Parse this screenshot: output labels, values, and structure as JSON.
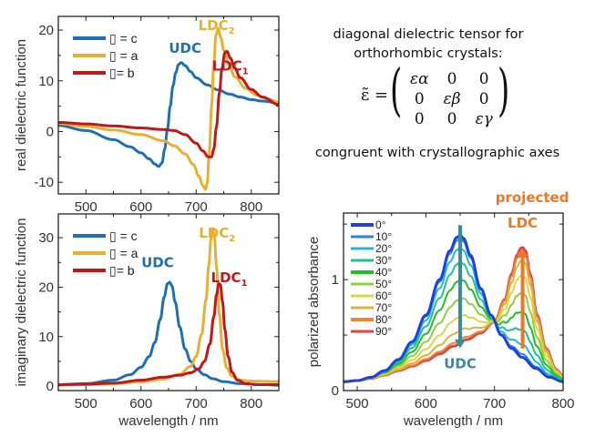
{
  "tensor_panel": {
    "line1": "diagonal dielectric tensor for",
    "line2": "orthorhombic crystals:",
    "lhs": "ε̃ =",
    "matrix": [
      [
        "ε_α",
        "0",
        "0"
      ],
      [
        "0",
        "ε_β",
        "0"
      ],
      [
        "0",
        "0",
        "ε_γ"
      ]
    ],
    "matrix_display": [
      [
        "εα",
        "0",
        "0"
      ],
      [
        "0",
        "εβ",
        "0"
      ],
      [
        "0",
        "0",
        "εγ"
      ]
    ],
    "footer": "congruent with crystallographic axes"
  },
  "colors": {
    "c_axis": "#1f6fb4",
    "a_axis": "#e8b030",
    "b_axis": "#c01818",
    "ldc_projected": "#e8782a",
    "udc_arrow": "#3a8a9a"
  },
  "chart_data": [
    {
      "id": "real",
      "type": "line",
      "title": "",
      "xlabel": "",
      "ylabel": "real dielectric function",
      "xlim": [
        450,
        850
      ],
      "ylim": [
        -12.3,
        22.7
      ],
      "xticks": [
        500,
        600,
        700,
        800
      ],
      "yticks": [
        -10,
        0,
        10,
        20
      ],
      "grid": false,
      "legend": {
        "placement": "top-left",
        "entries": [
          "▯ = c",
          "▯ = a",
          "▯= b"
        ]
      },
      "annotations": [
        {
          "text": "UDC",
          "color": "#1f6fb4",
          "x": 680,
          "y": 15.5
        },
        {
          "text": "LDC",
          "sub": "2",
          "color": "#e8b030",
          "x": 737,
          "y": 20
        },
        {
          "text": "LDC",
          "sub": "1",
          "color": "#c01818",
          "x": 762,
          "y": 12
        }
      ],
      "series": [
        {
          "name": "▯ = c",
          "color": "#1f6fb4",
          "x": [
            450,
            500,
            550,
            580,
            600,
            615,
            625,
            632,
            638,
            643,
            648,
            653,
            658,
            663,
            668,
            673,
            680,
            690,
            700,
            720,
            740,
            760,
            780,
            800,
            820,
            850
          ],
          "y": [
            1.2,
            0.2,
            -1.6,
            -3.0,
            -4.2,
            -5.4,
            -6.4,
            -6.9,
            -6.2,
            -3.5,
            0.5,
            5.0,
            9.0,
            11.6,
            13.2,
            13.6,
            13.0,
            11.8,
            10.6,
            9.2,
            8.2,
            7.4,
            6.8,
            6.3,
            6.0,
            5.6
          ]
        },
        {
          "name": "▯ = a",
          "color": "#e8b030",
          "x": [
            450,
            500,
            550,
            600,
            640,
            660,
            680,
            695,
            705,
            712,
            717,
            720,
            724,
            728,
            732,
            736,
            740,
            745,
            750,
            760,
            770,
            790,
            810,
            830,
            850
          ],
          "y": [
            1.6,
            1.0,
            0.3,
            -0.6,
            -1.8,
            -2.8,
            -4.4,
            -6.5,
            -8.8,
            -10.6,
            -11.4,
            -10.2,
            -4.0,
            5.0,
            13.5,
            19.0,
            20.3,
            18.5,
            16.0,
            13.0,
            10.8,
            8.5,
            7.2,
            6.4,
            5.8
          ]
        },
        {
          "name": "▯= b",
          "color": "#c01818",
          "x": [
            450,
            500,
            550,
            600,
            640,
            660,
            680,
            700,
            712,
            722,
            728,
            732,
            737,
            742,
            747,
            752,
            756,
            762,
            770,
            780,
            800,
            820,
            850
          ],
          "y": [
            1.8,
            1.5,
            1.1,
            0.7,
            0.4,
            0.2,
            -0.6,
            -2.3,
            -3.8,
            -5.0,
            -5.0,
            -3.5,
            1.0,
            7.5,
            12.5,
            15.5,
            15.8,
            14.5,
            12.5,
            10.6,
            8.3,
            6.8,
            5.3
          ]
        }
      ]
    },
    {
      "id": "imag",
      "type": "line",
      "title": "",
      "xlabel": "wavelength / nm",
      "ylabel": "imaginary dielectric function",
      "xlim": [
        450,
        850
      ],
      "ylim": [
        -0.9,
        34.8
      ],
      "xticks": [
        500,
        600,
        700,
        800
      ],
      "yticks": [
        0,
        10,
        20,
        30
      ],
      "grid": false,
      "legend": {
        "placement": "top-left",
        "entries": [
          "▯ = c",
          "▯ = a",
          "▯= b"
        ]
      },
      "annotations": [
        {
          "text": "UDC",
          "color": "#1f6fb4",
          "x": 630,
          "y": 24
        },
        {
          "text": "LDC",
          "sub": "2",
          "color": "#e8b030",
          "x": 738,
          "y": 30
        },
        {
          "text": "LDC",
          "sub": "1",
          "color": "#c01818",
          "x": 760,
          "y": 21
        }
      ],
      "series": [
        {
          "name": "▯ = c",
          "color": "#1f6fb4",
          "x": [
            450,
            500,
            550,
            580,
            600,
            615,
            625,
            635,
            642,
            648,
            652,
            656,
            662,
            670,
            680,
            690,
            700,
            715,
            730,
            750,
            780,
            820,
            850
          ],
          "y": [
            0.3,
            0.5,
            1.2,
            2.3,
            3.8,
            6.0,
            8.8,
            13.5,
            18.0,
            20.7,
            21.0,
            20.3,
            17.0,
            12.0,
            7.5,
            5.0,
            3.5,
            2.3,
            1.5,
            0.9,
            0.5,
            0.3,
            0.2
          ]
        },
        {
          "name": "▯ = a",
          "color": "#e8b030",
          "x": [
            450,
            500,
            550,
            600,
            640,
            670,
            690,
            700,
            710,
            718,
            723,
            727,
            730,
            733,
            737,
            742,
            748,
            755,
            765,
            780,
            800,
            850
          ],
          "y": [
            0.2,
            0.3,
            0.5,
            0.9,
            1.4,
            2.4,
            4.0,
            6.0,
            10.5,
            17.5,
            24.5,
            29.8,
            31.8,
            30.5,
            24.0,
            14.5,
            7.5,
            3.8,
            2.0,
            1.2,
            1.0,
            0.9
          ]
        },
        {
          "name": "▯= b",
          "color": "#c01818",
          "x": [
            450,
            500,
            550,
            600,
            640,
            670,
            690,
            705,
            715,
            725,
            732,
            737,
            741,
            744,
            748,
            752,
            758,
            765,
            775,
            790,
            810,
            850
          ],
          "y": [
            0.3,
            0.4,
            0.6,
            1.2,
            1.8,
            2.2,
            2.7,
            3.5,
            5.0,
            8.5,
            14.0,
            18.5,
            20.7,
            20.5,
            17.0,
            11.5,
            6.0,
            2.8,
            1.2,
            0.5,
            0.3,
            0.3
          ]
        }
      ]
    },
    {
      "id": "absorbance",
      "type": "line",
      "title": "",
      "xlabel": "wavelength / nm",
      "ylabel": "polarized absorbance",
      "xlim": [
        480,
        800
      ],
      "ylim": [
        0,
        1.6
      ],
      "xticks": [
        500,
        600,
        700,
        800
      ],
      "yticks": [
        0,
        1
      ],
      "minor_yticks": [
        0.5,
        1.5
      ],
      "grid": false,
      "legend": {
        "placement": "top-left",
        "entries": [
          "0°",
          "10°",
          "20°",
          "30°",
          "40°",
          "50°",
          "60°",
          "70°",
          "80°",
          "90°"
        ]
      },
      "annotations": [
        {
          "text": "projected",
          "color": "#e8782a",
          "x": 755,
          "y": 1.7
        },
        {
          "text": "LDC",
          "color": "#e8782a",
          "x": 741,
          "y": 1.47
        },
        {
          "text": "UDC",
          "color": "#3a8a9a",
          "x": 650,
          "y": 0.2
        }
      ],
      "arrows": [
        {
          "name": "UDC decrease",
          "x": 650,
          "y_from": 1.49,
          "y_to": 0.38,
          "color": "#3a8a9a"
        },
        {
          "name": "LDC increase",
          "x": 741,
          "y_from": 0.38,
          "y_to": 1.28,
          "color": "#e8782a"
        }
      ],
      "udc_component": {
        "x": [
          480,
          500,
          520,
          540,
          560,
          580,
          600,
          620,
          635,
          645,
          650,
          655,
          665,
          680,
          695,
          710,
          725,
          740,
          760,
          780,
          800
        ],
        "y": [
          0.08,
          0.09,
          0.12,
          0.18,
          0.28,
          0.44,
          0.68,
          1.0,
          1.26,
          1.38,
          1.4,
          1.37,
          1.22,
          0.92,
          0.68,
          0.5,
          0.38,
          0.3,
          0.2,
          0.12,
          0.08
        ]
      },
      "ldc_component": {
        "x": [
          480,
          500,
          520,
          540,
          560,
          580,
          600,
          620,
          640,
          660,
          680,
          700,
          715,
          725,
          733,
          738,
          741,
          745,
          752,
          762,
          775,
          790,
          800
        ],
        "y": [
          0.08,
          0.09,
          0.11,
          0.14,
          0.18,
          0.22,
          0.27,
          0.33,
          0.4,
          0.46,
          0.52,
          0.62,
          0.82,
          1.05,
          1.22,
          1.28,
          1.29,
          1.26,
          1.05,
          0.68,
          0.38,
          0.19,
          0.13
        ]
      },
      "series": [
        {
          "name": "0°",
          "angle_deg": 0,
          "color": "#2040e0"
        },
        {
          "name": "10°",
          "angle_deg": 10,
          "color": "#2088e0"
        },
        {
          "name": "20°",
          "angle_deg": 20,
          "color": "#20b8d0"
        },
        {
          "name": "30°",
          "angle_deg": 30,
          "color": "#20c090"
        },
        {
          "name": "40°",
          "angle_deg": 40,
          "color": "#20c020"
        },
        {
          "name": "50°",
          "angle_deg": 50,
          "color": "#90d040"
        },
        {
          "name": "60°",
          "angle_deg": 60,
          "color": "#d8d840"
        },
        {
          "name": "70°",
          "angle_deg": 70,
          "color": "#e0b040"
        },
        {
          "name": "80°",
          "angle_deg": 80,
          "color": "#e88a30"
        },
        {
          "name": "90°",
          "angle_deg": 90,
          "color": "#e84040"
        }
      ]
    }
  ]
}
